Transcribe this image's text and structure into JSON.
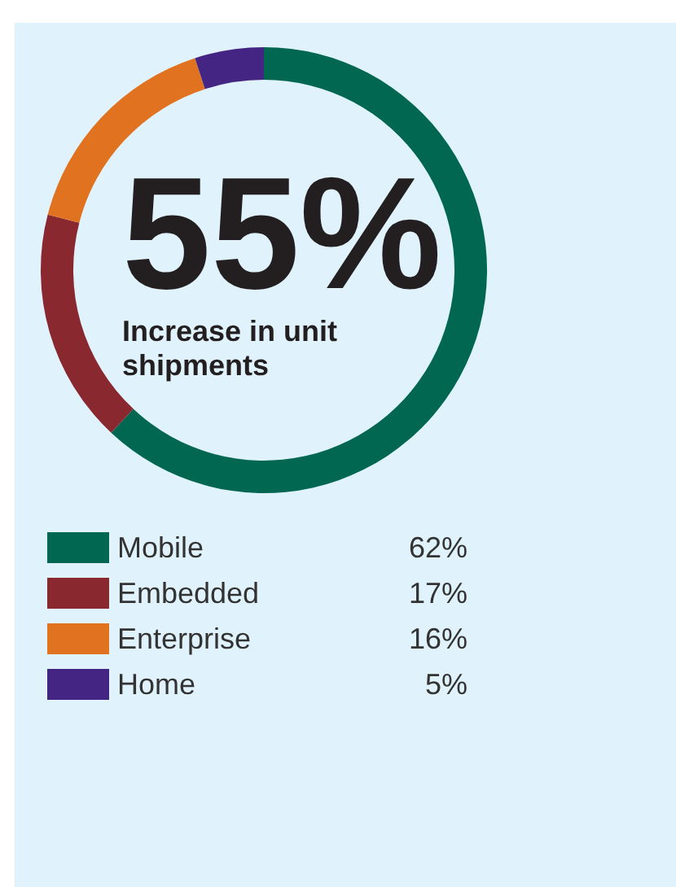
{
  "chart_data": {
    "type": "donut",
    "title": "55%",
    "subtitle": "Increase in unit shipments",
    "categories": [
      "Mobile",
      "Embedded",
      "Enterprise",
      "Home"
    ],
    "values": [
      62,
      17,
      16,
      5
    ],
    "value_labels": [
      "62%",
      "17%",
      "16%",
      "5%"
    ],
    "colors": [
      "#026751",
      "#8a2830",
      "#e17220",
      "#452583"
    ],
    "legend": "bottom"
  }
}
